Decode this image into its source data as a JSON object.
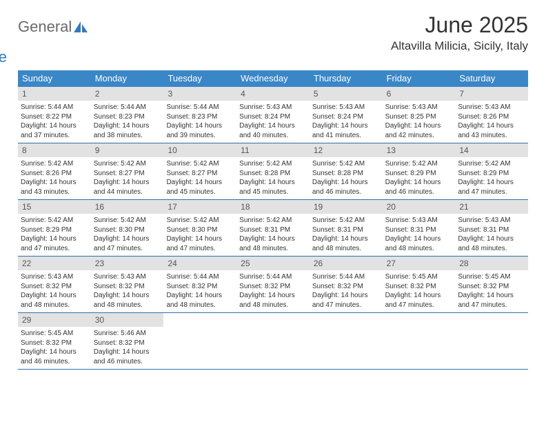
{
  "logo": {
    "text1": "General",
    "text2": "Blue",
    "sail_color": "#2f7ac0",
    "text1_color": "#6a6a6a"
  },
  "title": "June 2025",
  "location": "Altavilla Milicia, Sicily, Italy",
  "colors": {
    "header_bg": "#3a87c8",
    "header_text": "#ffffff",
    "daynum_bg": "#e2e2e2",
    "daynum_text": "#555555",
    "border": "#2f6fa8",
    "body_text": "#333333"
  },
  "dow": [
    "Sunday",
    "Monday",
    "Tuesday",
    "Wednesday",
    "Thursday",
    "Friday",
    "Saturday"
  ],
  "weeks": [
    [
      {
        "n": "1",
        "sr": "5:44 AM",
        "ss": "8:22 PM",
        "dl": "14 hours and 37 minutes."
      },
      {
        "n": "2",
        "sr": "5:44 AM",
        "ss": "8:23 PM",
        "dl": "14 hours and 38 minutes."
      },
      {
        "n": "3",
        "sr": "5:44 AM",
        "ss": "8:23 PM",
        "dl": "14 hours and 39 minutes."
      },
      {
        "n": "4",
        "sr": "5:43 AM",
        "ss": "8:24 PM",
        "dl": "14 hours and 40 minutes."
      },
      {
        "n": "5",
        "sr": "5:43 AM",
        "ss": "8:24 PM",
        "dl": "14 hours and 41 minutes."
      },
      {
        "n": "6",
        "sr": "5:43 AM",
        "ss": "8:25 PM",
        "dl": "14 hours and 42 minutes."
      },
      {
        "n": "7",
        "sr": "5:43 AM",
        "ss": "8:26 PM",
        "dl": "14 hours and 43 minutes."
      }
    ],
    [
      {
        "n": "8",
        "sr": "5:42 AM",
        "ss": "8:26 PM",
        "dl": "14 hours and 43 minutes."
      },
      {
        "n": "9",
        "sr": "5:42 AM",
        "ss": "8:27 PM",
        "dl": "14 hours and 44 minutes."
      },
      {
        "n": "10",
        "sr": "5:42 AM",
        "ss": "8:27 PM",
        "dl": "14 hours and 45 minutes."
      },
      {
        "n": "11",
        "sr": "5:42 AM",
        "ss": "8:28 PM",
        "dl": "14 hours and 45 minutes."
      },
      {
        "n": "12",
        "sr": "5:42 AM",
        "ss": "8:28 PM",
        "dl": "14 hours and 46 minutes."
      },
      {
        "n": "13",
        "sr": "5:42 AM",
        "ss": "8:29 PM",
        "dl": "14 hours and 46 minutes."
      },
      {
        "n": "14",
        "sr": "5:42 AM",
        "ss": "8:29 PM",
        "dl": "14 hours and 47 minutes."
      }
    ],
    [
      {
        "n": "15",
        "sr": "5:42 AM",
        "ss": "8:29 PM",
        "dl": "14 hours and 47 minutes."
      },
      {
        "n": "16",
        "sr": "5:42 AM",
        "ss": "8:30 PM",
        "dl": "14 hours and 47 minutes."
      },
      {
        "n": "17",
        "sr": "5:42 AM",
        "ss": "8:30 PM",
        "dl": "14 hours and 47 minutes."
      },
      {
        "n": "18",
        "sr": "5:42 AM",
        "ss": "8:31 PM",
        "dl": "14 hours and 48 minutes."
      },
      {
        "n": "19",
        "sr": "5:42 AM",
        "ss": "8:31 PM",
        "dl": "14 hours and 48 minutes."
      },
      {
        "n": "20",
        "sr": "5:43 AM",
        "ss": "8:31 PM",
        "dl": "14 hours and 48 minutes."
      },
      {
        "n": "21",
        "sr": "5:43 AM",
        "ss": "8:31 PM",
        "dl": "14 hours and 48 minutes."
      }
    ],
    [
      {
        "n": "22",
        "sr": "5:43 AM",
        "ss": "8:32 PM",
        "dl": "14 hours and 48 minutes."
      },
      {
        "n": "23",
        "sr": "5:43 AM",
        "ss": "8:32 PM",
        "dl": "14 hours and 48 minutes."
      },
      {
        "n": "24",
        "sr": "5:44 AM",
        "ss": "8:32 PM",
        "dl": "14 hours and 48 minutes."
      },
      {
        "n": "25",
        "sr": "5:44 AM",
        "ss": "8:32 PM",
        "dl": "14 hours and 48 minutes."
      },
      {
        "n": "26",
        "sr": "5:44 AM",
        "ss": "8:32 PM",
        "dl": "14 hours and 47 minutes."
      },
      {
        "n": "27",
        "sr": "5:45 AM",
        "ss": "8:32 PM",
        "dl": "14 hours and 47 minutes."
      },
      {
        "n": "28",
        "sr": "5:45 AM",
        "ss": "8:32 PM",
        "dl": "14 hours and 47 minutes."
      }
    ],
    [
      {
        "n": "29",
        "sr": "5:45 AM",
        "ss": "8:32 PM",
        "dl": "14 hours and 46 minutes."
      },
      {
        "n": "30",
        "sr": "5:46 AM",
        "ss": "8:32 PM",
        "dl": "14 hours and 46 minutes."
      },
      null,
      null,
      null,
      null,
      null
    ]
  ],
  "labels": {
    "sunrise": "Sunrise:",
    "sunset": "Sunset:",
    "daylight": "Daylight:"
  }
}
